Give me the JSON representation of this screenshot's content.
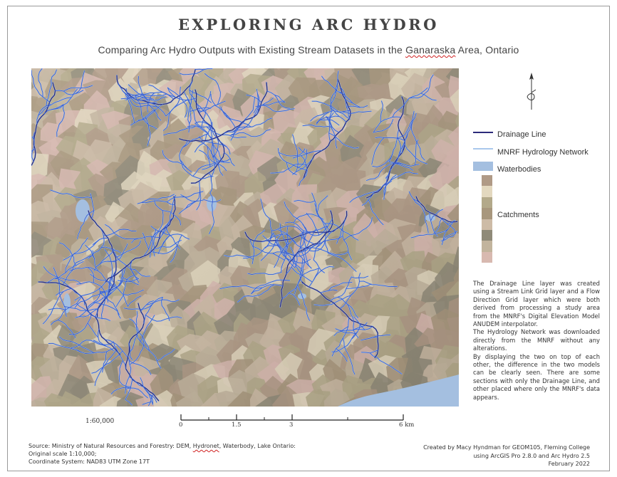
{
  "title": "EXPLORING ARC HYDRO",
  "subtitle_before": "Comparing Arc Hydro Outputs with Existing Stream Datasets in the ",
  "subtitle_flagged": "Ganaraska",
  "subtitle_after": " Area, Ontario",
  "legend": {
    "drainage_line": "Drainage Line",
    "mnrf_network": "MNRF Hydrology Network",
    "waterbodies": "Waterbodies",
    "catchments": "Catchments"
  },
  "colors": {
    "drainage_line": "#2c2a7a",
    "mnrf_network": "#a9c8ec",
    "waterbodies": "#a4bfe0",
    "stream_blue": "#3a5fd0",
    "catchment_swatches": [
      "#b09a86",
      "#e3d8bf",
      "#b3a98a",
      "#a8977d",
      "#cdbba6",
      "#8f8a78",
      "#c2b49d",
      "#d8b9b0"
    ]
  },
  "description": [
    "The Drainage Line layer was created using a Stream Link Grid layer and a Flow Direction Grid layer which were both derived from processing a study area from the MNRF's Digital Elevation Model ANUDEM interpolator.",
    "The Hydrology Network was downloaded directly from the MNRF without any alterations.",
    "By displaying the two on top of each other, the difference in the two models can be clearly seen. There are some sections with only the Drainage Line, and other placed where only the MNRF's data appears."
  ],
  "scale": {
    "ratio": "1:60,000",
    "labels": [
      "0",
      "1.5",
      "3",
      "6 km"
    ]
  },
  "source": {
    "line1_before": "Source: Ministry of Natural Resources and Forestry: DEM, ",
    "line1_flagged": "Hydronet",
    "line1_after": ", Waterbody, Lake Ontario:",
    "line2": "Original scale 1:10,000;",
    "line3": "Coordinate System: NAD83 UTM Zone 17T"
  },
  "credits": {
    "line1": "Created by Macy Hyndman for GEOM105, Fleming College",
    "line2": "using ArcGIS Pro 2.8.0 and Arc Hydro 2.5",
    "line3": "February 2022"
  }
}
